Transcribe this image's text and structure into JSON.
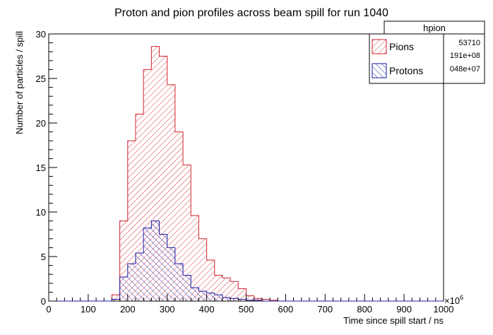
{
  "chart_data": {
    "type": "bar",
    "title": "Proton and pion profiles across beam spill for run 1040",
    "xlabel": "Time since spill start / ns",
    "ylabel": "Number of particles / spill",
    "x_multiplier_label": "×10",
    "x_multiplier_exp": "6",
    "xlim": [
      0,
      1000
    ],
    "ylim": [
      0,
      30
    ],
    "x_ticks": [
      "0",
      "100",
      "200",
      "300",
      "400",
      "500",
      "600",
      "700",
      "800",
      "900",
      "1000"
    ],
    "y_ticks": [
      "0",
      "5",
      "10",
      "15",
      "20",
      "25",
      "30"
    ],
    "bin_width": 20,
    "bin_edges_start": 0,
    "series": [
      {
        "name": "Pions",
        "color": "#d2232a",
        "values": [
          0,
          0,
          0,
          0,
          0,
          0,
          0,
          0,
          0.7,
          9.0,
          18.0,
          21.0,
          26.0,
          28.6,
          27.5,
          24.3,
          19.0,
          15.3,
          9.6,
          7.0,
          4.6,
          2.9,
          2.6,
          2.2,
          1.4,
          0.6,
          0.3,
          0.2,
          0.1,
          0,
          0,
          0,
          0,
          0,
          0,
          0,
          0,
          0,
          0,
          0,
          0,
          0,
          0,
          0,
          0,
          0,
          0,
          0,
          0,
          0
        ]
      },
      {
        "name": "Protons",
        "color": "#1a1aa6",
        "values": [
          0,
          0,
          0,
          0,
          0,
          0,
          0,
          0,
          0.2,
          2.7,
          4.2,
          5.4,
          8.2,
          9.0,
          7.5,
          6.0,
          4.2,
          2.9,
          1.5,
          1.1,
          0.9,
          0.7,
          0.4,
          0.3,
          0.2,
          0.1,
          0.1,
          0,
          0,
          0,
          0,
          0,
          0,
          0,
          0,
          0,
          0,
          0,
          0,
          0,
          0,
          0,
          0,
          0,
          0,
          0,
          0,
          0,
          0,
          0
        ]
      }
    ],
    "stats_box": {
      "title": "hpion",
      "values": [
        "53710",
        "191e+08",
        "048e+07"
      ]
    },
    "legend": {
      "position": "top-right",
      "entries": [
        "Pions",
        "Protons"
      ]
    }
  }
}
